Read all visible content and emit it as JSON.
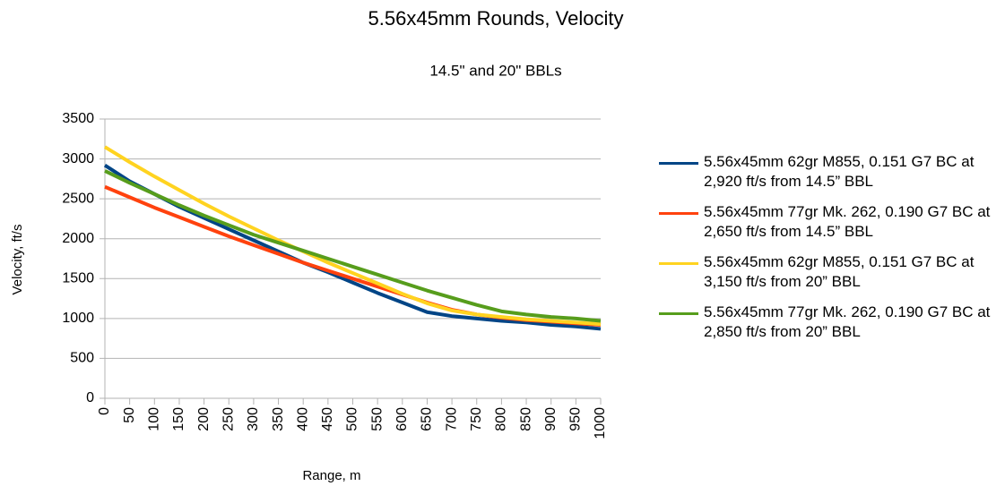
{
  "chart_data": {
    "type": "line",
    "title": "5.56x45mm Rounds, Velocity",
    "subtitle": "14.5\" and 20\" BBLs",
    "x_label": "Range, m",
    "y_label": "Velocity, ft/s",
    "x": [
      0,
      50,
      100,
      150,
      200,
      250,
      300,
      350,
      400,
      450,
      500,
      550,
      600,
      650,
      700,
      750,
      800,
      850,
      900,
      950,
      1000
    ],
    "series": [
      {
        "name": "5.56x45mm 62gr M855, 0.151 G7 BC at 2,920 ft/s from 14.5” BBL",
        "color": "#004586",
        "values": [
          2920,
          2720,
          2560,
          2400,
          2260,
          2120,
          1980,
          1840,
          1700,
          1580,
          1450,
          1320,
          1200,
          1080,
          1030,
          1000,
          970,
          950,
          920,
          900,
          870
        ]
      },
      {
        "name": "5.56x45mm 77gr Mk. 262, 0.190 G7 BC at 2,650 ft/s from 14.5” BBL",
        "color": "#ff420e",
        "values": [
          2650,
          2520,
          2390,
          2270,
          2150,
          2030,
          1920,
          1810,
          1700,
          1600,
          1500,
          1400,
          1300,
          1200,
          1110,
          1050,
          1010,
          980,
          960,
          940,
          920
        ]
      },
      {
        "name": "5.56x45mm 62gr M855, 0.151 G7 BC at 3,150 ft/s from 20” BBL",
        "color": "#ffd320",
        "values": [
          3150,
          2960,
          2780,
          2610,
          2440,
          2280,
          2130,
          1980,
          1840,
          1700,
          1570,
          1440,
          1310,
          1190,
          1100,
          1050,
          1020,
          990,
          970,
          950,
          930
        ]
      },
      {
        "name": "5.56x45mm 77gr Mk. 262, 0.190 G7 BC at 2,850 ft/s from 20” BBL",
        "color": "#579d1c",
        "values": [
          2850,
          2700,
          2560,
          2420,
          2290,
          2170,
          2050,
          1950,
          1850,
          1750,
          1650,
          1550,
          1450,
          1350,
          1260,
          1170,
          1090,
          1050,
          1020,
          1000,
          970
        ]
      }
    ],
    "xlim": [
      0,
      1000
    ],
    "xticks": [
      0,
      50,
      100,
      150,
      200,
      250,
      300,
      350,
      400,
      450,
      500,
      550,
      600,
      650,
      700,
      750,
      800,
      850,
      900,
      950,
      1000
    ],
    "ylim": [
      0,
      3500
    ],
    "yticks": [
      0,
      500,
      1000,
      1500,
      2000,
      2500,
      3000,
      3500
    ],
    "grid": true,
    "legend": "right"
  }
}
